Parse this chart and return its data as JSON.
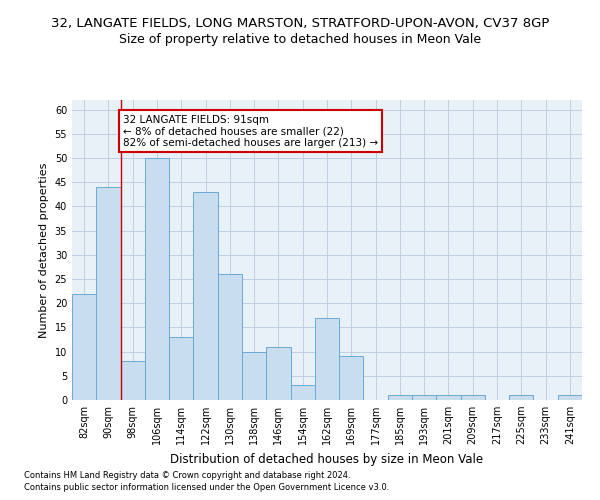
{
  "title_line1": "32, LANGATE FIELDS, LONG MARSTON, STRATFORD-UPON-AVON, CV37 8GP",
  "title_line2": "Size of property relative to detached houses in Meon Vale",
  "xlabel": "Distribution of detached houses by size in Meon Vale",
  "ylabel": "Number of detached properties",
  "categories": [
    "82sqm",
    "90sqm",
    "98sqm",
    "106sqm",
    "114sqm",
    "122sqm",
    "130sqm",
    "138sqm",
    "146sqm",
    "154sqm",
    "162sqm",
    "169sqm",
    "177sqm",
    "185sqm",
    "193sqm",
    "201sqm",
    "209sqm",
    "217sqm",
    "225sqm",
    "233sqm",
    "241sqm"
  ],
  "values": [
    22,
    44,
    8,
    50,
    13,
    43,
    26,
    10,
    11,
    3,
    17,
    9,
    0,
    1,
    1,
    1,
    1,
    0,
    1,
    0,
    1
  ],
  "bar_color": "#c9ddf0",
  "bar_edge_color": "#6aaad4",
  "red_line_index": 1.5,
  "annotation_text": "32 LANGATE FIELDS: 91sqm\n← 8% of detached houses are smaller (22)\n82% of semi-detached houses are larger (213) →",
  "annotation_box_color": "#ffffff",
  "annotation_box_edge": "#cc0000",
  "ylim": [
    0,
    62
  ],
  "yticks": [
    0,
    5,
    10,
    15,
    20,
    25,
    30,
    35,
    40,
    45,
    50,
    55,
    60
  ],
  "footer1": "Contains HM Land Registry data © Crown copyright and database right 2024.",
  "footer2": "Contains public sector information licensed under the Open Government Licence v3.0.",
  "bg_color": "#ffffff",
  "plot_bg_color": "#e8f0f8",
  "grid_color": "#c0cfe0",
  "title_fontsize": 9.5,
  "subtitle_fontsize": 9,
  "axis_label_fontsize": 8,
  "tick_fontsize": 7,
  "footer_fontsize": 6,
  "annot_fontsize": 7.5
}
